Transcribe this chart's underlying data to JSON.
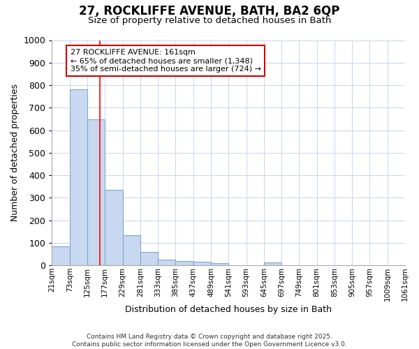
{
  "title_line1": "27, ROCKLIFFE AVENUE, BATH, BA2 6QP",
  "title_line2": "Size of property relative to detached houses in Bath",
  "xlabel": "Distribution of detached houses by size in Bath",
  "ylabel": "Number of detached properties",
  "bin_edges": [
    21,
    73,
    125,
    177,
    229,
    281,
    333,
    385,
    437,
    489,
    541,
    593,
    645,
    697,
    749,
    801,
    853,
    905,
    957,
    1009,
    1061
  ],
  "bar_heights": [
    83,
    780,
    648,
    335,
    133,
    60,
    25,
    18,
    15,
    8,
    0,
    0,
    12,
    0,
    0,
    0,
    0,
    0,
    0,
    0
  ],
  "bar_color": "#c8d8f0",
  "bar_edge_color": "#7aaad0",
  "bar_edge_width": 0.8,
  "ylim": [
    0,
    1000
  ],
  "yticks": [
    0,
    100,
    200,
    300,
    400,
    500,
    600,
    700,
    800,
    900,
    1000
  ],
  "red_line_x": 161,
  "background_color": "#ffffff",
  "plot_bg_color": "#ffffff",
  "grid_color": "#c8d4ee",
  "annotation_text_line1": "27 ROCKLIFFE AVENUE: 161sqm",
  "annotation_text_line2": "← 65% of detached houses are smaller (1,348)",
  "annotation_text_line3": "35% of semi-detached houses are larger (724) →",
  "annotation_box_color": "#ffffff",
  "annotation_box_edge": "#cc0000",
  "footer_line1": "Contains HM Land Registry data © Crown copyright and database right 2025.",
  "footer_line2": "Contains public sector information licensed under the Open Government Licence v3.0."
}
